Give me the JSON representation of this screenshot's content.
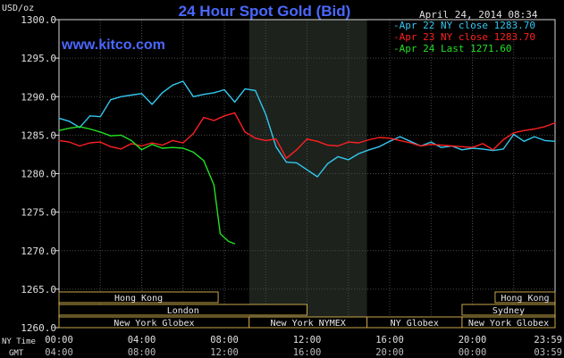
{
  "chart_data": {
    "type": "line",
    "title": "24 Hour Spot Gold (Bid)",
    "subtitle": "www.kitco.com",
    "timestamp": "April 24, 2014 08:34",
    "ylabel": "USD/oz",
    "ylim": [
      1260,
      1300
    ],
    "xlim": [
      0,
      24
    ],
    "y_ticks": [
      "1260.0",
      "1265.0",
      "1270.0",
      "1275.0",
      "1280.0",
      "1285.0",
      "1290.0",
      "1295.0",
      "1300.0"
    ],
    "x_row_labels": {
      "ny": "NY Time",
      "gmt": "GMT"
    },
    "x_ticks_ny": [
      "00:00",
      "04:00",
      "08:00",
      "12:00",
      "16:00",
      "20:00",
      "23:59"
    ],
    "x_ticks_gmt": [
      "04:00",
      "08:00",
      "12:00",
      "16:00",
      "20:00",
      "00:00",
      "03:59"
    ],
    "grid": true,
    "shaded_interval": [
      9.2,
      14.9
    ],
    "legend_position": "top-right",
    "series": [
      {
        "name": "Apr 22 NY close 1283.70",
        "color": "#33c8f0",
        "x": [
          0,
          0.5,
          1,
          1.5,
          2,
          2.5,
          3,
          3.5,
          4,
          4.5,
          5,
          5.5,
          6,
          6.5,
          7,
          7.5,
          8,
          8.5,
          9,
          9.5,
          10,
          10.5,
          11,
          11.5,
          12,
          12.5,
          13,
          13.5,
          14,
          14.5,
          15,
          15.5,
          16,
          16.5,
          17,
          17.5,
          18,
          18.5,
          19,
          19.5,
          20,
          20.5,
          21,
          21.5,
          22,
          22.5,
          23,
          23.5,
          24
        ],
        "y": [
          1287.2,
          1286.8,
          1286.0,
          1287.5,
          1287.4,
          1289.6,
          1290.0,
          1290.2,
          1290.4,
          1289.0,
          1290.5,
          1291.5,
          1292.0,
          1290.0,
          1290.3,
          1290.5,
          1290.9,
          1289.3,
          1291.0,
          1290.8,
          1287.7,
          1283.5,
          1281.5,
          1281.4,
          1280.5,
          1279.6,
          1281.3,
          1282.2,
          1281.8,
          1282.6,
          1283.1,
          1283.5,
          1284.2,
          1284.8,
          1284.2,
          1283.6,
          1284.1,
          1283.4,
          1283.6,
          1283.1,
          1283.3,
          1283.2,
          1283.0,
          1283.2,
          1285.1,
          1284.2,
          1284.8,
          1284.3,
          1284.2
        ]
      },
      {
        "name": "Apr 23 NY close 1283.70",
        "color": "#ff2020",
        "x": [
          0,
          0.5,
          1,
          1.5,
          2,
          2.5,
          3,
          3.5,
          4,
          4.5,
          5,
          5.5,
          6,
          6.5,
          7,
          7.5,
          8,
          8.5,
          9,
          9.5,
          10,
          10.5,
          11,
          11.5,
          12,
          12.5,
          13,
          13.5,
          14,
          14.5,
          15,
          15.5,
          16,
          16.5,
          17,
          17.5,
          18,
          18.5,
          19,
          19.5,
          20,
          20.5,
          21,
          21.5,
          22,
          22.5,
          23,
          23.5,
          24
        ],
        "y": [
          1284.3,
          1284.1,
          1283.6,
          1284.0,
          1284.1,
          1283.5,
          1283.2,
          1283.9,
          1283.6,
          1284.0,
          1283.7,
          1284.3,
          1284.0,
          1285.2,
          1287.3,
          1286.9,
          1287.5,
          1287.9,
          1285.4,
          1284.6,
          1284.3,
          1284.5,
          1282.0,
          1283.1,
          1284.5,
          1284.2,
          1283.7,
          1283.6,
          1284.1,
          1284.0,
          1284.4,
          1284.7,
          1284.6,
          1284.3,
          1284.0,
          1283.6,
          1283.8,
          1283.7,
          1283.6,
          1283.5,
          1283.4,
          1283.9,
          1283.1,
          1284.4,
          1285.3,
          1285.6,
          1285.8,
          1286.1,
          1286.6
        ]
      },
      {
        "name": "Apr 24 Last 1271.60",
        "color": "#22e022",
        "x": [
          0,
          0.5,
          1,
          1.5,
          2,
          2.5,
          3,
          3.5,
          4,
          4.5,
          5,
          5.5,
          6,
          6.5,
          7,
          7.5,
          7.8,
          8.2,
          8.5
        ],
        "y": [
          1285.6,
          1285.9,
          1286.1,
          1285.8,
          1285.4,
          1284.9,
          1285.0,
          1284.3,
          1283.1,
          1283.8,
          1283.3,
          1283.4,
          1283.3,
          1282.8,
          1281.7,
          1278.5,
          1272.2,
          1271.2,
          1270.9
        ]
      }
    ],
    "market_bars": [
      {
        "label": "Hong Kong",
        "start": 0,
        "end": 7.7,
        "row": 1
      },
      {
        "label": "London",
        "start": 0,
        "end": 12.0,
        "row": 2
      },
      {
        "label": "New York Globex",
        "start": 0,
        "end": 9.2,
        "row": 3
      },
      {
        "label": "New York NYMEX",
        "start": 9.2,
        "end": 14.9,
        "row": 3
      },
      {
        "label": "NY Globex",
        "start": 14.9,
        "end": 19.5,
        "row": 3
      },
      {
        "label": "Hong Kong",
        "start": 21.1,
        "end": 24,
        "row": 1
      },
      {
        "label": "Sydney",
        "start": 19.5,
        "end": 24,
        "row": 2
      },
      {
        "label": "New York Globex",
        "start": 19.5,
        "end": 24,
        "row": 3
      }
    ]
  }
}
